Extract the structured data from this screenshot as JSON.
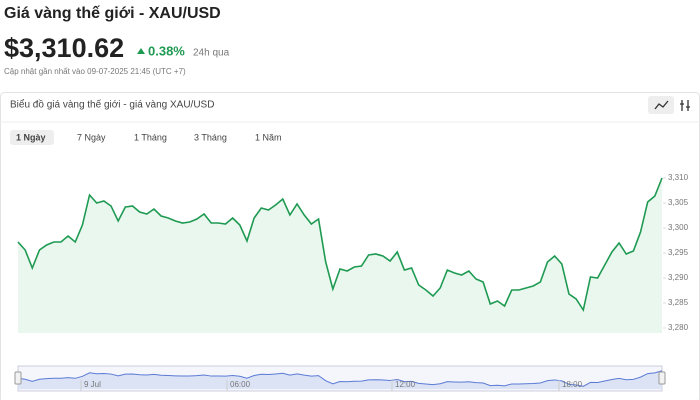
{
  "header": {
    "title": "Giá vàng thế giới - XAU/USD",
    "price": "$3,310.62",
    "change": "0.38%",
    "period": "24h qua",
    "updated": "Cập nhật gần nhất vào 09-07-2025 21:45 (UTC +7)"
  },
  "tabs": [
    "1 Ngày",
    "7 Ngày",
    "1 Tháng",
    "3 Tháng",
    "1 Năm"
  ],
  "selected_tab": 0,
  "chart_data": {
    "type": "line",
    "title": "Biểu đồ giá vàng thế giới - giá vàng XAU/USD",
    "color": "#1e9a52",
    "fill": "#eaf7ee",
    "values": [
      3297.2,
      3295.6,
      3292,
      3295.6,
      3296.6,
      3297.2,
      3297.2,
      3298.4,
      3297.2,
      3300.6,
      3306.6,
      3305,
      3305.4,
      3304.4,
      3301.4,
      3304.2,
      3304.4,
      3303.2,
      3302.8,
      3303.8,
      3302.4,
      3302,
      3301.4,
      3301,
      3301.2,
      3301.8,
      3302.8,
      3301,
      3301,
      3300.8,
      3302,
      3300.6,
      3297.4,
      3302,
      3304,
      3303.6,
      3304.6,
      3305.8,
      3302.6,
      3304.8,
      3302.6,
      3300.8,
      3301.8,
      3293.2,
      3287.8,
      3291.8,
      3291.4,
      3292.2,
      3292.4,
      3294.6,
      3294.8,
      3294.4,
      3293.4,
      3295.2,
      3291.6,
      3292,
      3288.6,
      3287.6,
      3286.4,
      3288,
      3291.6,
      3291,
      3290.6,
      3291.4,
      3289.8,
      3289.2,
      3284.8,
      3285.4,
      3284.4,
      3287.6,
      3287.6,
      3288,
      3288.4,
      3289.2,
      3293.2,
      3294.4,
      3292.8,
      3286.8,
      3285.8,
      3283.6,
      3290.2,
      3290,
      3292.6,
      3295.2,
      3297,
      3294.8,
      3295.4,
      3299.2,
      3305.2,
      3306.4,
      3310
    ],
    "ylim": [
      3279,
      3313
    ],
    "yticks": [
      {
        "value": 3280,
        "label": "3,280"
      },
      {
        "value": 3285,
        "label": "3,285"
      },
      {
        "value": 3290,
        "label": "3,290"
      },
      {
        "value": 3295,
        "label": "3,295"
      },
      {
        "value": 3300,
        "label": "3,300"
      },
      {
        "value": 3305,
        "label": "3,305"
      },
      {
        "value": 3310,
        "label": "3,310"
      }
    ],
    "navigator_labels": [
      "9 Jul",
      "06:00",
      "12:00",
      "18:00"
    ]
  }
}
